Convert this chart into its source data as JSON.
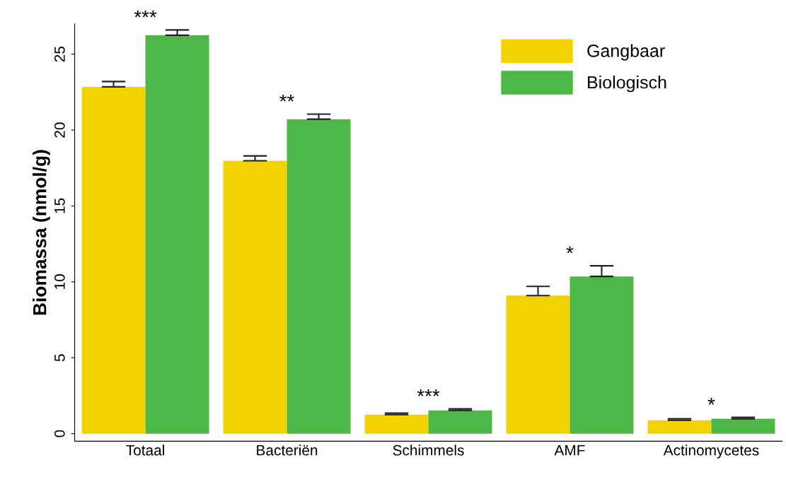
{
  "chart_data": {
    "type": "bar",
    "ylabel": "Biomassa (nmol/g)",
    "categories": [
      "Totaal",
      "Bacteriën",
      "Schimmels",
      "AMF",
      "Actinomycetes"
    ],
    "series": [
      {
        "name": "Gangbaar",
        "color": "#f2d200",
        "values": [
          22.85,
          17.98,
          1.25,
          9.1,
          0.88
        ],
        "errors": [
          [
            22.85,
            23.2
          ],
          [
            17.98,
            18.3
          ],
          [
            1.25,
            1.35
          ],
          [
            9.1,
            9.7
          ],
          [
            0.88,
            0.98
          ]
        ]
      },
      {
        "name": "Biologisch",
        "color": "#4db848",
        "values": [
          26.25,
          20.72,
          1.53,
          10.36,
          0.98
        ],
        "errors": [
          [
            26.25,
            26.6
          ],
          [
            20.72,
            21.05
          ],
          [
            1.53,
            1.63
          ],
          [
            10.36,
            11.06
          ],
          [
            0.98,
            1.07
          ]
        ]
      }
    ],
    "ylim": [
      -0.5,
      27
    ],
    "yticks": [
      0,
      5,
      10,
      15,
      20,
      25
    ],
    "grid": false,
    "legend": "top right",
    "annotations": [
      "***",
      "**",
      "***",
      "*",
      "*"
    ]
  }
}
